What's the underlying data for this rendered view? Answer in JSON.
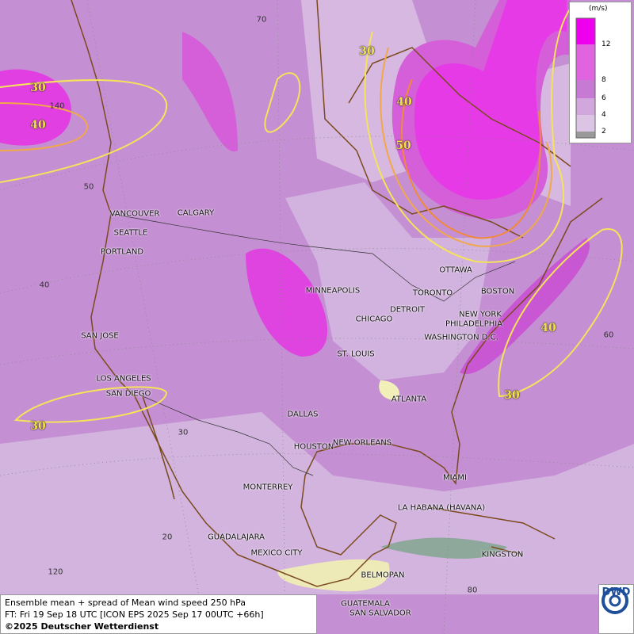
{
  "map": {
    "cities": [
      "VANCOUVER",
      "CALGARY",
      "SEATTLE",
      "PORTLAND",
      "MINNEAPOLIS",
      "TORONTO",
      "OTTAWA",
      "BOSTON",
      "DETROIT",
      "NEW YORK",
      "PHILADELPHIA",
      "CHICAGO",
      "WASHINGTON D.C.",
      "SAN JOSE",
      "ST. LOUIS",
      "ATLANTA",
      "LOS ANGELES",
      "SAN DIEGO",
      "DALLAS",
      "HOUSTON",
      "NEW ORLEANS",
      "MIAMI",
      "MONTERREY",
      "LA HABANA (HAVANA)",
      "GUADALAJARA",
      "MEXICO CITY",
      "KINGSTON",
      "BELMOPAN",
      "GUATEMALA",
      "SAN SALVADOR"
    ],
    "graticule_labels": [
      "70",
      "140",
      "50",
      "40",
      "30",
      "20",
      "120",
      "60",
      "80"
    ],
    "contour_labels": [
      "30",
      "40",
      "30",
      "40",
      "50",
      "40",
      "30",
      "30"
    ]
  },
  "legend": {
    "unit": "(m/s)",
    "ticks": [
      "12",
      "8",
      "6",
      "4",
      "2"
    ]
  },
  "footer": {
    "line1": "Ensemble mean + spread of Mean wind speed 250 hPa",
    "line2": "FT: Fri 19 Sep 18 UTC [ICON EPS 2025 Sep 17 00UTC +66h]",
    "line3": "©2025 Deutscher Wetterdienst"
  },
  "logo": "DWD"
}
